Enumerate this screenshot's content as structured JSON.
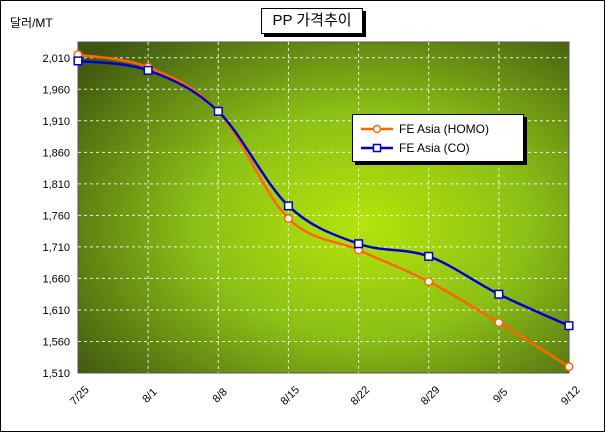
{
  "chart_data": {
    "type": "line",
    "title": "PP 가격추이",
    "ylabel": "달러/MT",
    "xlabel": "",
    "categories": [
      "7/25",
      "8/1",
      "8/8",
      "8/15",
      "8/22",
      "8/29",
      "9/5",
      "9/12"
    ],
    "yticks": [
      "1,510",
      "1,560",
      "1,610",
      "1,660",
      "1,710",
      "1,760",
      "1,810",
      "1,860",
      "1,910",
      "1,960",
      "2,010"
    ],
    "ylim": [
      1510,
      2035
    ],
    "grid": true,
    "legend_position": "right",
    "series": [
      {
        "name": "FE Asia (HOMO)",
        "color": "#ff6600",
        "marker": "circle",
        "values": [
          2015,
          1995,
          1925,
          1755,
          1705,
          1655,
          1590,
          1520
        ]
      },
      {
        "name": "FE Asia (CO)",
        "color": "#0000cc",
        "marker": "square",
        "values": [
          2005,
          1990,
          1925,
          1775,
          1715,
          1695,
          1635,
          1585
        ]
      }
    ]
  }
}
